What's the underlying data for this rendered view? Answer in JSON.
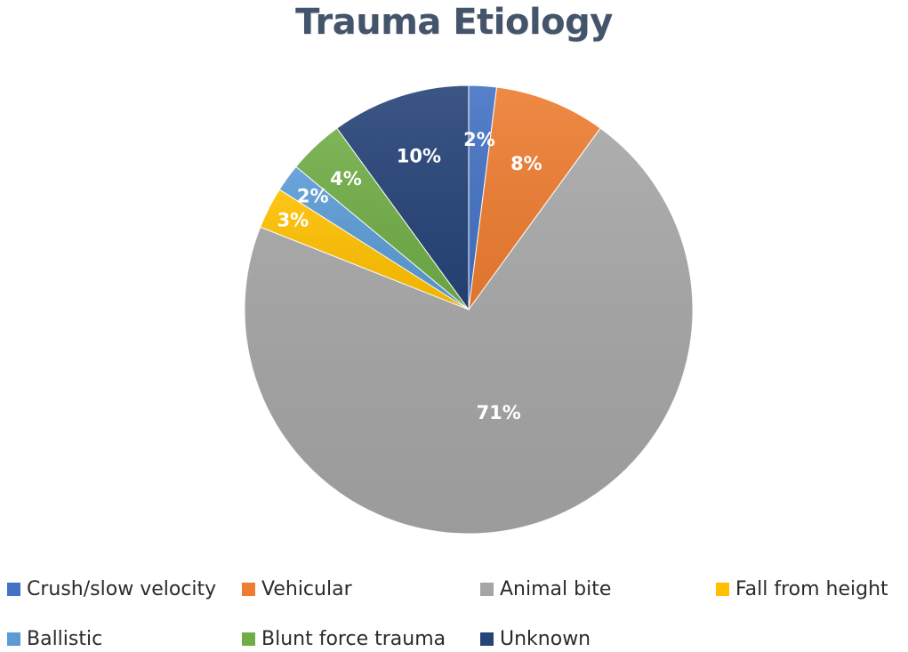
{
  "chart_data": {
    "type": "pie",
    "title": "Trauma Etiology",
    "start_angle_deg": 0,
    "direction": "clockwise",
    "legend_position": "bottom",
    "slices": [
      {
        "name": "Crush/slow velocity",
        "value": 2,
        "label": "2%",
        "color": "#4472c4"
      },
      {
        "name": "Vehicular",
        "value": 8,
        "label": "8%",
        "color": "#ed7d31"
      },
      {
        "name": "Animal bite",
        "value": 71,
        "label": "71%",
        "color": "#a5a5a5"
      },
      {
        "name": "Fall from height",
        "value": 3,
        "label": "3%",
        "color": "#ffc000"
      },
      {
        "name": "Ballistic",
        "value": 2,
        "label": "2%",
        "color": "#5b9bd5"
      },
      {
        "name": "Blunt force trauma",
        "value": 4,
        "label": "4%",
        "color": "#70ad47"
      },
      {
        "name": "Unknown",
        "value": 10,
        "label": "10%",
        "color": "#264478"
      }
    ]
  }
}
